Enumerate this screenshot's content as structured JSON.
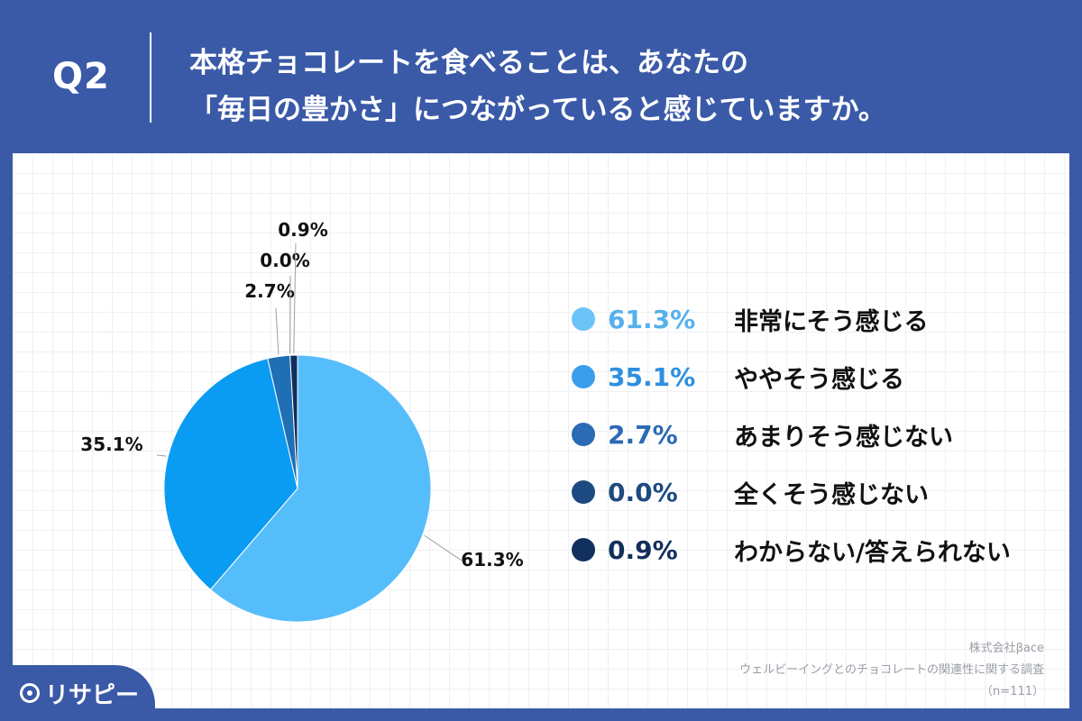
{
  "header": {
    "q_number": "Q2",
    "question_line1": "本格チョコレートを食べることは、あなたの",
    "question_line2": "「毎日の豊かさ」につながっていると感じていますか。"
  },
  "chart_data": {
    "type": "pie",
    "title": "",
    "slices": [
      {
        "label": "非常にそう感じる",
        "value": 61.3,
        "value_label": "61.3%",
        "color": "#56bdfb"
      },
      {
        "label": "ややそう感じる",
        "value": 35.1,
        "value_label": "35.1%",
        "color": "#0a9cf2"
      },
      {
        "label": "あまりそう感じない",
        "value": 2.7,
        "value_label": "2.7%",
        "color": "#1f6fb5"
      },
      {
        "label": "全くそう感じない",
        "value": 0.0,
        "value_label": "0.0%",
        "color": "#1b4e86"
      },
      {
        "label": "わからない/答えられない",
        "value": 0.9,
        "value_label": "0.9%",
        "color": "#0f2f5e"
      }
    ],
    "legend_placement": "right",
    "grid": false
  },
  "legend": {
    "items": [
      {
        "pct": "61.3%",
        "label": "非常にそう感じる",
        "color": "#6bc3f7",
        "text_color": "#56b0ec"
      },
      {
        "pct": "35.1%",
        "label": "ややそう感じる",
        "color": "#3a9eec",
        "text_color": "#2e8fe0"
      },
      {
        "pct": "2.7%",
        "label": "あまりそう感じない",
        "color": "#2b6ab4",
        "text_color": "#2b6ab4"
      },
      {
        "pct": "0.0%",
        "label": "全くそう感じない",
        "color": "#1d4a80",
        "text_color": "#1d4a80"
      },
      {
        "pct": "0.9%",
        "label": "わからない/答えられない",
        "color": "#12305e",
        "text_color": "#12305e"
      }
    ]
  },
  "footer": {
    "company": "株式会社βace",
    "survey": "ウェルビーイングとのチョコレートの関連性に関する調査",
    "sample": "（n=111）",
    "logo_text": "リサピー"
  },
  "colors": {
    "background": "#3a5aa8",
    "panel": "#ffffff"
  }
}
